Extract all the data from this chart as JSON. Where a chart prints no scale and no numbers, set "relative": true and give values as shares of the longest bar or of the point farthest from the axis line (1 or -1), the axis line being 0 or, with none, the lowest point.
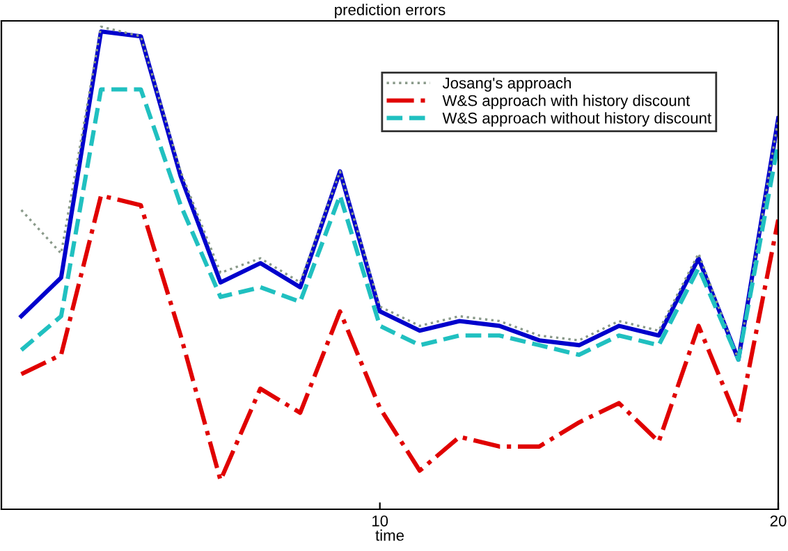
{
  "chart_data": {
    "type": "line",
    "title": "prediction errors",
    "xlabel": "time",
    "relative": true,
    "x": [
      1,
      2,
      3,
      4,
      5,
      6,
      7,
      8,
      9,
      10,
      11,
      12,
      13,
      14,
      15,
      16,
      17,
      18,
      19,
      20
    ],
    "xlim": [
      0.5,
      20
    ],
    "xticks": [
      10,
      20
    ],
    "tick_labels": "x",
    "grid": false,
    "legend": "top right",
    "series": [
      {
        "color": "#0000cc",
        "line_style": "solid",
        "values": [
          0.4,
          0.48,
          0.99,
          0.98,
          0.69,
          0.47,
          0.51,
          0.46,
          0.7,
          0.41,
          0.37,
          0.39,
          0.38,
          0.35,
          0.34,
          0.38,
          0.36,
          0.52,
          0.31,
          0.81
        ]
      },
      {
        "name": "Josang's approach",
        "color": "#8a9a8a",
        "line_style": "dotted",
        "values": [
          0.62,
          0.53,
          1.0,
          0.98,
          0.7,
          0.49,
          0.52,
          0.47,
          0.7,
          0.42,
          0.38,
          0.4,
          0.39,
          0.36,
          0.35,
          0.39,
          0.37,
          0.53,
          0.31,
          0.81
        ]
      },
      {
        "name": "W&S approach with history discount",
        "color": "#e00000",
        "line_style": "dashdot",
        "values": [
          0.28,
          0.32,
          0.65,
          0.63,
          0.36,
          0.06,
          0.25,
          0.2,
          0.41,
          0.21,
          0.08,
          0.15,
          0.13,
          0.13,
          0.18,
          0.22,
          0.14,
          0.38,
          0.18,
          0.6
        ]
      },
      {
        "name": "W&S approach without history discount",
        "color": "#20c0c0",
        "line_style": "dashed",
        "values": [
          0.33,
          0.4,
          0.87,
          0.87,
          0.63,
          0.44,
          0.46,
          0.43,
          0.65,
          0.38,
          0.34,
          0.36,
          0.36,
          0.34,
          0.32,
          0.36,
          0.34,
          0.5,
          0.31,
          0.76
        ]
      }
    ]
  }
}
